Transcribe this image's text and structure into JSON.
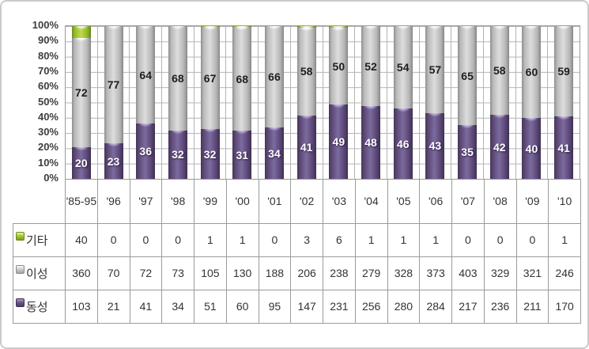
{
  "frame": {
    "background": "#ffffff",
    "border_color": "#cbcbcb"
  },
  "chart_data": {
    "type": "bar",
    "subtype": "stacked-100-percent-cylinder",
    "title": "",
    "xlabel": "",
    "ylabel": "",
    "ylim": [
      0,
      100
    ],
    "grid": true,
    "legend_position": "data-table-left",
    "y_ticks": [
      "100%",
      "90%",
      "80%",
      "70%",
      "60%",
      "50%",
      "40%",
      "30%",
      "20%",
      "10%",
      "0%"
    ],
    "categories": [
      "'85-95",
      "'96",
      "'97",
      "'98",
      "'99",
      "'00",
      "'01",
      "'02",
      "'03",
      "'04",
      "'05",
      "'06",
      "'07",
      "'08",
      "'09",
      "'10"
    ],
    "series": [
      {
        "key": "other",
        "name": "기타",
        "color": "#a9c934",
        "values": [
          40,
          0,
          0,
          0,
          1,
          1,
          0,
          3,
          6,
          1,
          1,
          1,
          0,
          0,
          0,
          1
        ]
      },
      {
        "key": "hetero",
        "name": "이성",
        "color": "#c6c6c6",
        "values": [
          360,
          70,
          72,
          73,
          105,
          130,
          188,
          206,
          238,
          279,
          328,
          373,
          403,
          329,
          321,
          246
        ],
        "pct_labels": [
          "72",
          "77",
          "64",
          "68",
          "67",
          "68",
          "66",
          "58",
          "50",
          "52",
          "54",
          "57",
          "65",
          "58",
          "60",
          "59"
        ]
      },
      {
        "key": "same",
        "name": "동성",
        "color": "#604a7b",
        "values": [
          103,
          21,
          41,
          34,
          51,
          60,
          95,
          147,
          231,
          256,
          280,
          284,
          217,
          236,
          211,
          170
        ],
        "pct_labels": [
          "20",
          "23",
          "36",
          "32",
          "32",
          "31",
          "34",
          "41",
          "49",
          "48",
          "46",
          "43",
          "35",
          "42",
          "40",
          "41"
        ]
      }
    ]
  }
}
